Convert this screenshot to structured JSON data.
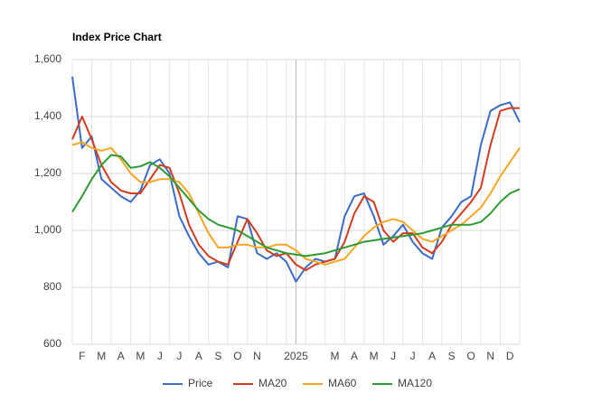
{
  "chart_data": {
    "type": "line",
    "title": "Index Price Chart",
    "categories": [
      null,
      "F",
      null,
      "M",
      null,
      "A",
      null,
      "M",
      null,
      "J",
      null,
      "J",
      null,
      "A",
      null,
      "S",
      null,
      "O",
      null,
      "N",
      null,
      null,
      null,
      "2025",
      null,
      null,
      null,
      "M",
      null,
      "A",
      null,
      "M",
      null,
      "J",
      null,
      "J",
      null,
      "A",
      null,
      "S",
      null,
      "O",
      null,
      "N",
      null,
      "D",
      null
    ],
    "series": [
      {
        "name": "Price",
        "color": "#3b6cc8",
        "values": [
          1540,
          1290,
          1330,
          1180,
          1150,
          1120,
          1100,
          1140,
          1230,
          1250,
          1200,
          1050,
          980,
          920,
          880,
          890,
          870,
          1050,
          1040,
          920,
          900,
          920,
          890,
          820,
          870,
          900,
          890,
          900,
          1050,
          1120,
          1130,
          1050,
          950,
          980,
          1020,
          960,
          920,
          900,
          1010,
          1050,
          1100,
          1120,
          1300,
          1420,
          1440,
          1450,
          1380
        ]
      },
      {
        "name": "MA20",
        "color": "#d23c1e",
        "values": [
          1320,
          1400,
          1320,
          1230,
          1170,
          1140,
          1130,
          1130,
          1180,
          1230,
          1220,
          1130,
          1020,
          950,
          910,
          890,
          880,
          960,
          1040,
          990,
          930,
          910,
          920,
          880,
          860,
          880,
          890,
          900,
          960,
          1060,
          1120,
          1100,
          1000,
          960,
          990,
          990,
          940,
          920,
          960,
          1020,
          1060,
          1100,
          1150,
          1300,
          1420,
          1430,
          1430
        ]
      },
      {
        "name": "MA60",
        "color": "#f5a623",
        "values": [
          1300,
          1310,
          1290,
          1280,
          1290,
          1250,
          1200,
          1170,
          1170,
          1180,
          1180,
          1170,
          1130,
          1060,
          990,
          940,
          940,
          950,
          950,
          940,
          940,
          950,
          950,
          930,
          900,
          890,
          880,
          890,
          900,
          940,
          980,
          1010,
          1030,
          1040,
          1030,
          1000,
          970,
          960,
          980,
          1000,
          1020,
          1050,
          1080,
          1130,
          1190,
          1240,
          1290
        ]
      },
      {
        "name": "MA120",
        "color": "#2f9a33",
        "values": [
          1065,
          1120,
          1180,
          1230,
          1265,
          1260,
          1220,
          1225,
          1240,
          1220,
          1190,
          1150,
          1110,
          1070,
          1040,
          1020,
          1010,
          1000,
          980,
          960,
          940,
          930,
          920,
          915,
          910,
          915,
          920,
          930,
          940,
          950,
          960,
          965,
          970,
          975,
          980,
          985,
          990,
          1000,
          1010,
          1020,
          1020,
          1020,
          1030,
          1060,
          1100,
          1130,
          1145
        ]
      }
    ],
    "ylim": [
      600,
      1600
    ],
    "yticks": [
      600,
      800,
      {
        "value": 1000,
        "label": "1,000"
      },
      {
        "value": 1200,
        "label": "1,200"
      },
      {
        "value": 1400,
        "label": "1,400"
      },
      {
        "value": 1600,
        "label": "1,600"
      }
    ],
    "grid": true,
    "legend": "bottom"
  }
}
